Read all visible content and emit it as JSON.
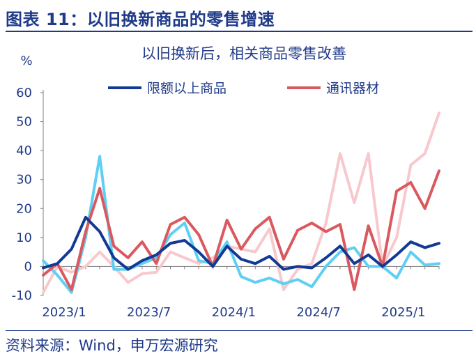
{
  "figure": {
    "title": "图表 11：以旧换新商品的零售增速",
    "source": "资料来源：Wind，申万宏源研究"
  },
  "colors": {
    "accent": "#1f3a8a",
    "series": [
      "#123a94",
      "#d9595f",
      "#5fcff3",
      "#f7c9cd"
    ]
  },
  "chart_data": {
    "type": "line",
    "title": "以旧换新后，相关商品零售改善",
    "ylabel": "%",
    "ylim": [
      -10,
      60
    ],
    "yticks": [
      -10,
      0,
      10,
      20,
      30,
      40,
      50,
      60
    ],
    "x": [
      "2023/1",
      "2023/2",
      "2023/3",
      "2023/4",
      "2023/5",
      "2023/6",
      "2023/7",
      "2023/8",
      "2023/9",
      "2023/10",
      "2023/11",
      "2023/12",
      "2024/1",
      "2024/2",
      "2024/3",
      "2024/4",
      "2024/5",
      "2024/6",
      "2024/7",
      "2024/8",
      "2024/9",
      "2024/10",
      "2024/11",
      "2024/12",
      "2025/1",
      "2025/2",
      "2025/3",
      "2025/4",
      "2025/5"
    ],
    "xticks": [
      "2023/1",
      "2023/7",
      "2024/1",
      "2024/7",
      "2025/1"
    ],
    "grid": false,
    "legend_position": "top",
    "series": [
      {
        "name": "限额以上商品",
        "color": "#123a94",
        "values": [
          -0.5,
          1,
          6,
          17,
          12,
          3,
          -1,
          2,
          4,
          8,
          9,
          5,
          0,
          7,
          2.5,
          1,
          3.5,
          -1,
          0,
          -0.5,
          3,
          7,
          1,
          4,
          0,
          4,
          8.5,
          6.5,
          8
        ]
      },
      {
        "name": "通讯器材",
        "color": "#d9595f",
        "values": [
          -3,
          1,
          -8,
          12,
          27,
          7,
          3,
          8.5,
          1,
          14.5,
          17,
          11,
          0,
          16,
          6,
          13,
          17,
          2.5,
          12.5,
          15,
          12,
          14.5,
          -8,
          14,
          0,
          26,
          29,
          20,
          33
        ]
      },
      {
        "name": "",
        "color": "#5fcff3",
        "values": [
          2,
          -3,
          -9,
          10,
          38,
          -1,
          -1,
          1,
          3,
          11,
          15,
          2,
          1,
          8.5,
          -3.5,
          -5.5,
          -4,
          -6,
          -4.5,
          -7,
          0,
          5,
          6.5,
          0,
          0,
          -4,
          5,
          0.5,
          1
        ]
      },
      {
        "name": "",
        "color": "#f7c9cd",
        "values": [
          -9,
          0,
          -2,
          0,
          5,
          0,
          -5.5,
          -2.5,
          -2,
          5,
          3,
          1,
          3,
          7,
          6,
          5,
          13,
          -8,
          -1,
          1,
          15,
          39,
          22,
          39,
          0,
          10,
          35,
          39,
          53
        ]
      }
    ]
  }
}
